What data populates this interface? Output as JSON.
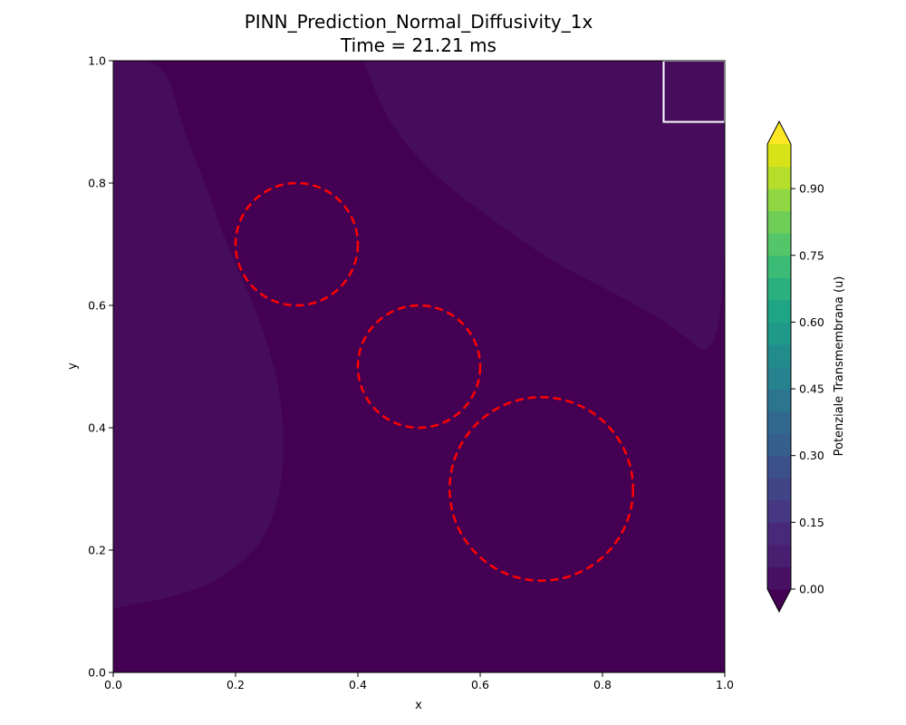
{
  "chart_data": {
    "type": "heatmap",
    "title_line1": "PINN_Prediction_Normal_Diffusivity_1x",
    "title_line2": "Time = 21.21 ms",
    "xlabel": "x",
    "ylabel": "y",
    "xlim": [
      0.0,
      1.0
    ],
    "ylim": [
      0.0,
      1.0
    ],
    "x_ticks": [
      0.0,
      0.2,
      0.4,
      0.6,
      0.8,
      1.0
    ],
    "x_tick_labels": [
      "0.0",
      "0.2",
      "0.4",
      "0.6",
      "0.8",
      "1.0"
    ],
    "y_ticks": [
      0.0,
      0.2,
      0.4,
      0.6,
      0.8,
      1.0
    ],
    "y_tick_labels": [
      "0.0",
      "0.2",
      "0.4",
      "0.6",
      "0.8",
      "1.0"
    ],
    "grid": false,
    "colorbar": {
      "label": "Potenziale Transmembrana (u)",
      "min": 0.0,
      "max": 1.0,
      "levels": 20,
      "ticks": [
        0.0,
        0.15,
        0.3,
        0.45,
        0.6,
        0.75,
        0.9
      ],
      "tick_labels": [
        "0.00",
        "0.15",
        "0.30",
        "0.45",
        "0.60",
        "0.75",
        "0.90"
      ],
      "extend": "both",
      "colormap": "viridis"
    },
    "field": {
      "base_level_range": [
        0.0,
        0.05
      ],
      "upper_level_range": [
        0.05,
        0.1
      ],
      "upper_regions": [
        {
          "name": "left band",
          "boundary": [
            [
              0.0,
              0.105
            ],
            [
              0.13,
              0.13
            ],
            [
              0.2,
              0.17
            ],
            [
              0.25,
              0.22
            ],
            [
              0.275,
              0.3
            ],
            [
              0.28,
              0.4
            ],
            [
              0.265,
              0.5
            ],
            [
              0.23,
              0.6
            ],
            [
              0.185,
              0.7
            ],
            [
              0.15,
              0.8
            ],
            [
              0.11,
              0.9
            ],
            [
              0.085,
              1.0
            ],
            [
              0.0,
              1.0
            ]
          ]
        },
        {
          "name": "upper-right region",
          "boundary": [
            [
              0.41,
              1.0
            ],
            [
              0.44,
              0.92
            ],
            [
              0.48,
              0.86
            ],
            [
              0.54,
              0.8
            ],
            [
              0.62,
              0.74
            ],
            [
              0.72,
              0.67
            ],
            [
              0.82,
              0.62
            ],
            [
              0.91,
              0.57
            ],
            [
              1.0,
              0.495
            ],
            [
              1.0,
              1.0
            ]
          ]
        }
      ]
    },
    "circles": [
      {
        "cx": 0.3,
        "cy": 0.7,
        "r": 0.1
      },
      {
        "cx": 0.5,
        "cy": 0.5,
        "r": 0.1
      },
      {
        "cx": 0.7,
        "cy": 0.3,
        "r": 0.15
      }
    ],
    "stimulus_box": {
      "x0": 0.9,
      "y0": 0.9,
      "x1": 1.0,
      "y1": 1.0
    },
    "colors": {
      "base_fill": "#440154",
      "upper_fill": "#450d5c",
      "circle_stroke": "#ff0000",
      "box_stroke": "#ffffff",
      "viridis_bands": [
        "#440154",
        "#471063",
        "#481e70",
        "#482879",
        "#453781",
        "#414487",
        "#3c508b",
        "#355f8d",
        "#31688e",
        "#2b758e",
        "#26828e",
        "#228c8d",
        "#1f9a8a",
        "#20a486",
        "#2ab07f",
        "#3bbb75",
        "#54c568",
        "#6ece58",
        "#90d743",
        "#b5de2b",
        "#d8e219",
        "#fde725"
      ]
    }
  }
}
